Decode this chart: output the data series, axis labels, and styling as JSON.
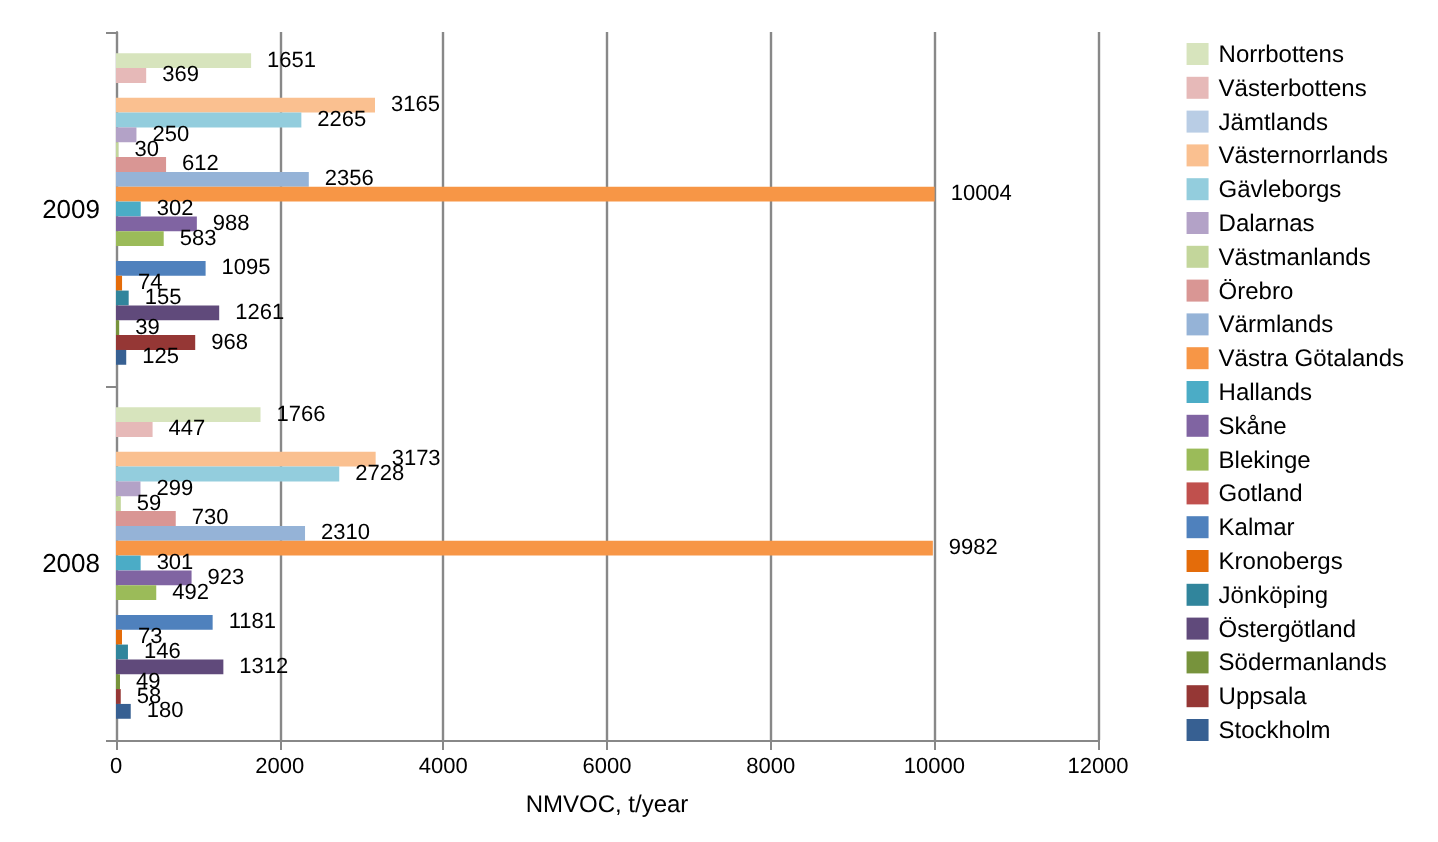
{
  "chart_data": {
    "type": "bar",
    "orientation": "horizontal",
    "categories": [
      "2009",
      "2008"
    ],
    "xlabel": "NMVOC, t/year",
    "xlim": [
      0,
      12000
    ],
    "xticks": [
      0,
      2000,
      4000,
      6000,
      8000,
      10000,
      12000
    ],
    "grid": "x",
    "legend": "right",
    "data_labels": true,
    "series": [
      {
        "name": "Norrbottens",
        "color": "#d7e4bd",
        "values": [
          1651,
          1766
        ]
      },
      {
        "name": "Västerbottens",
        "color": "#e6b9b8",
        "values": [
          369,
          447
        ]
      },
      {
        "name": "Jämtlands",
        "color": "#b9cde5",
        "values": [
          null,
          null
        ]
      },
      {
        "name": "Västernorrlands",
        "color": "#fac090",
        "values": [
          3165,
          3173
        ]
      },
      {
        "name": "Gävleborgs",
        "color": "#93cddd",
        "values": [
          2265,
          2728
        ]
      },
      {
        "name": "Dalarnas",
        "color": "#b3a2c7",
        "values": [
          250,
          299
        ]
      },
      {
        "name": "Västmanlands",
        "color": "#c3d69b",
        "values": [
          30,
          59
        ]
      },
      {
        "name": "Örebro",
        "color": "#d99694",
        "values": [
          612,
          730
        ]
      },
      {
        "name": "Värmlands",
        "color": "#95b3d7",
        "values": [
          2356,
          2310
        ]
      },
      {
        "name": "Västra Götalands",
        "color": "#f79646",
        "values": [
          10004,
          9982
        ]
      },
      {
        "name": "Hallands",
        "color": "#4bacc6",
        "values": [
          302,
          301
        ]
      },
      {
        "name": "Skåne",
        "color": "#8064a2",
        "values": [
          988,
          923
        ]
      },
      {
        "name": "Blekinge",
        "color": "#9bbb59",
        "values": [
          583,
          492
        ]
      },
      {
        "name": "Gotland",
        "color": "#c0504d",
        "values": [
          null,
          null
        ]
      },
      {
        "name": "Kalmar",
        "color": "#4f81bd",
        "values": [
          1095,
          1181
        ]
      },
      {
        "name": "Kronobergs",
        "color": "#e46c0a",
        "values": [
          74,
          73
        ]
      },
      {
        "name": "Jönköping",
        "color": "#31859c",
        "values": [
          155,
          146
        ]
      },
      {
        "name": "Östergötland",
        "color": "#604a7b",
        "values": [
          1261,
          1312
        ]
      },
      {
        "name": "Södermanlands",
        "color": "#77933c",
        "values": [
          39,
          49
        ]
      },
      {
        "name": "Uppsala",
        "color": "#953735",
        "values": [
          968,
          58
        ]
      },
      {
        "name": "Stockholm",
        "color": "#376092",
        "values": [
          125,
          180
        ]
      }
    ]
  }
}
